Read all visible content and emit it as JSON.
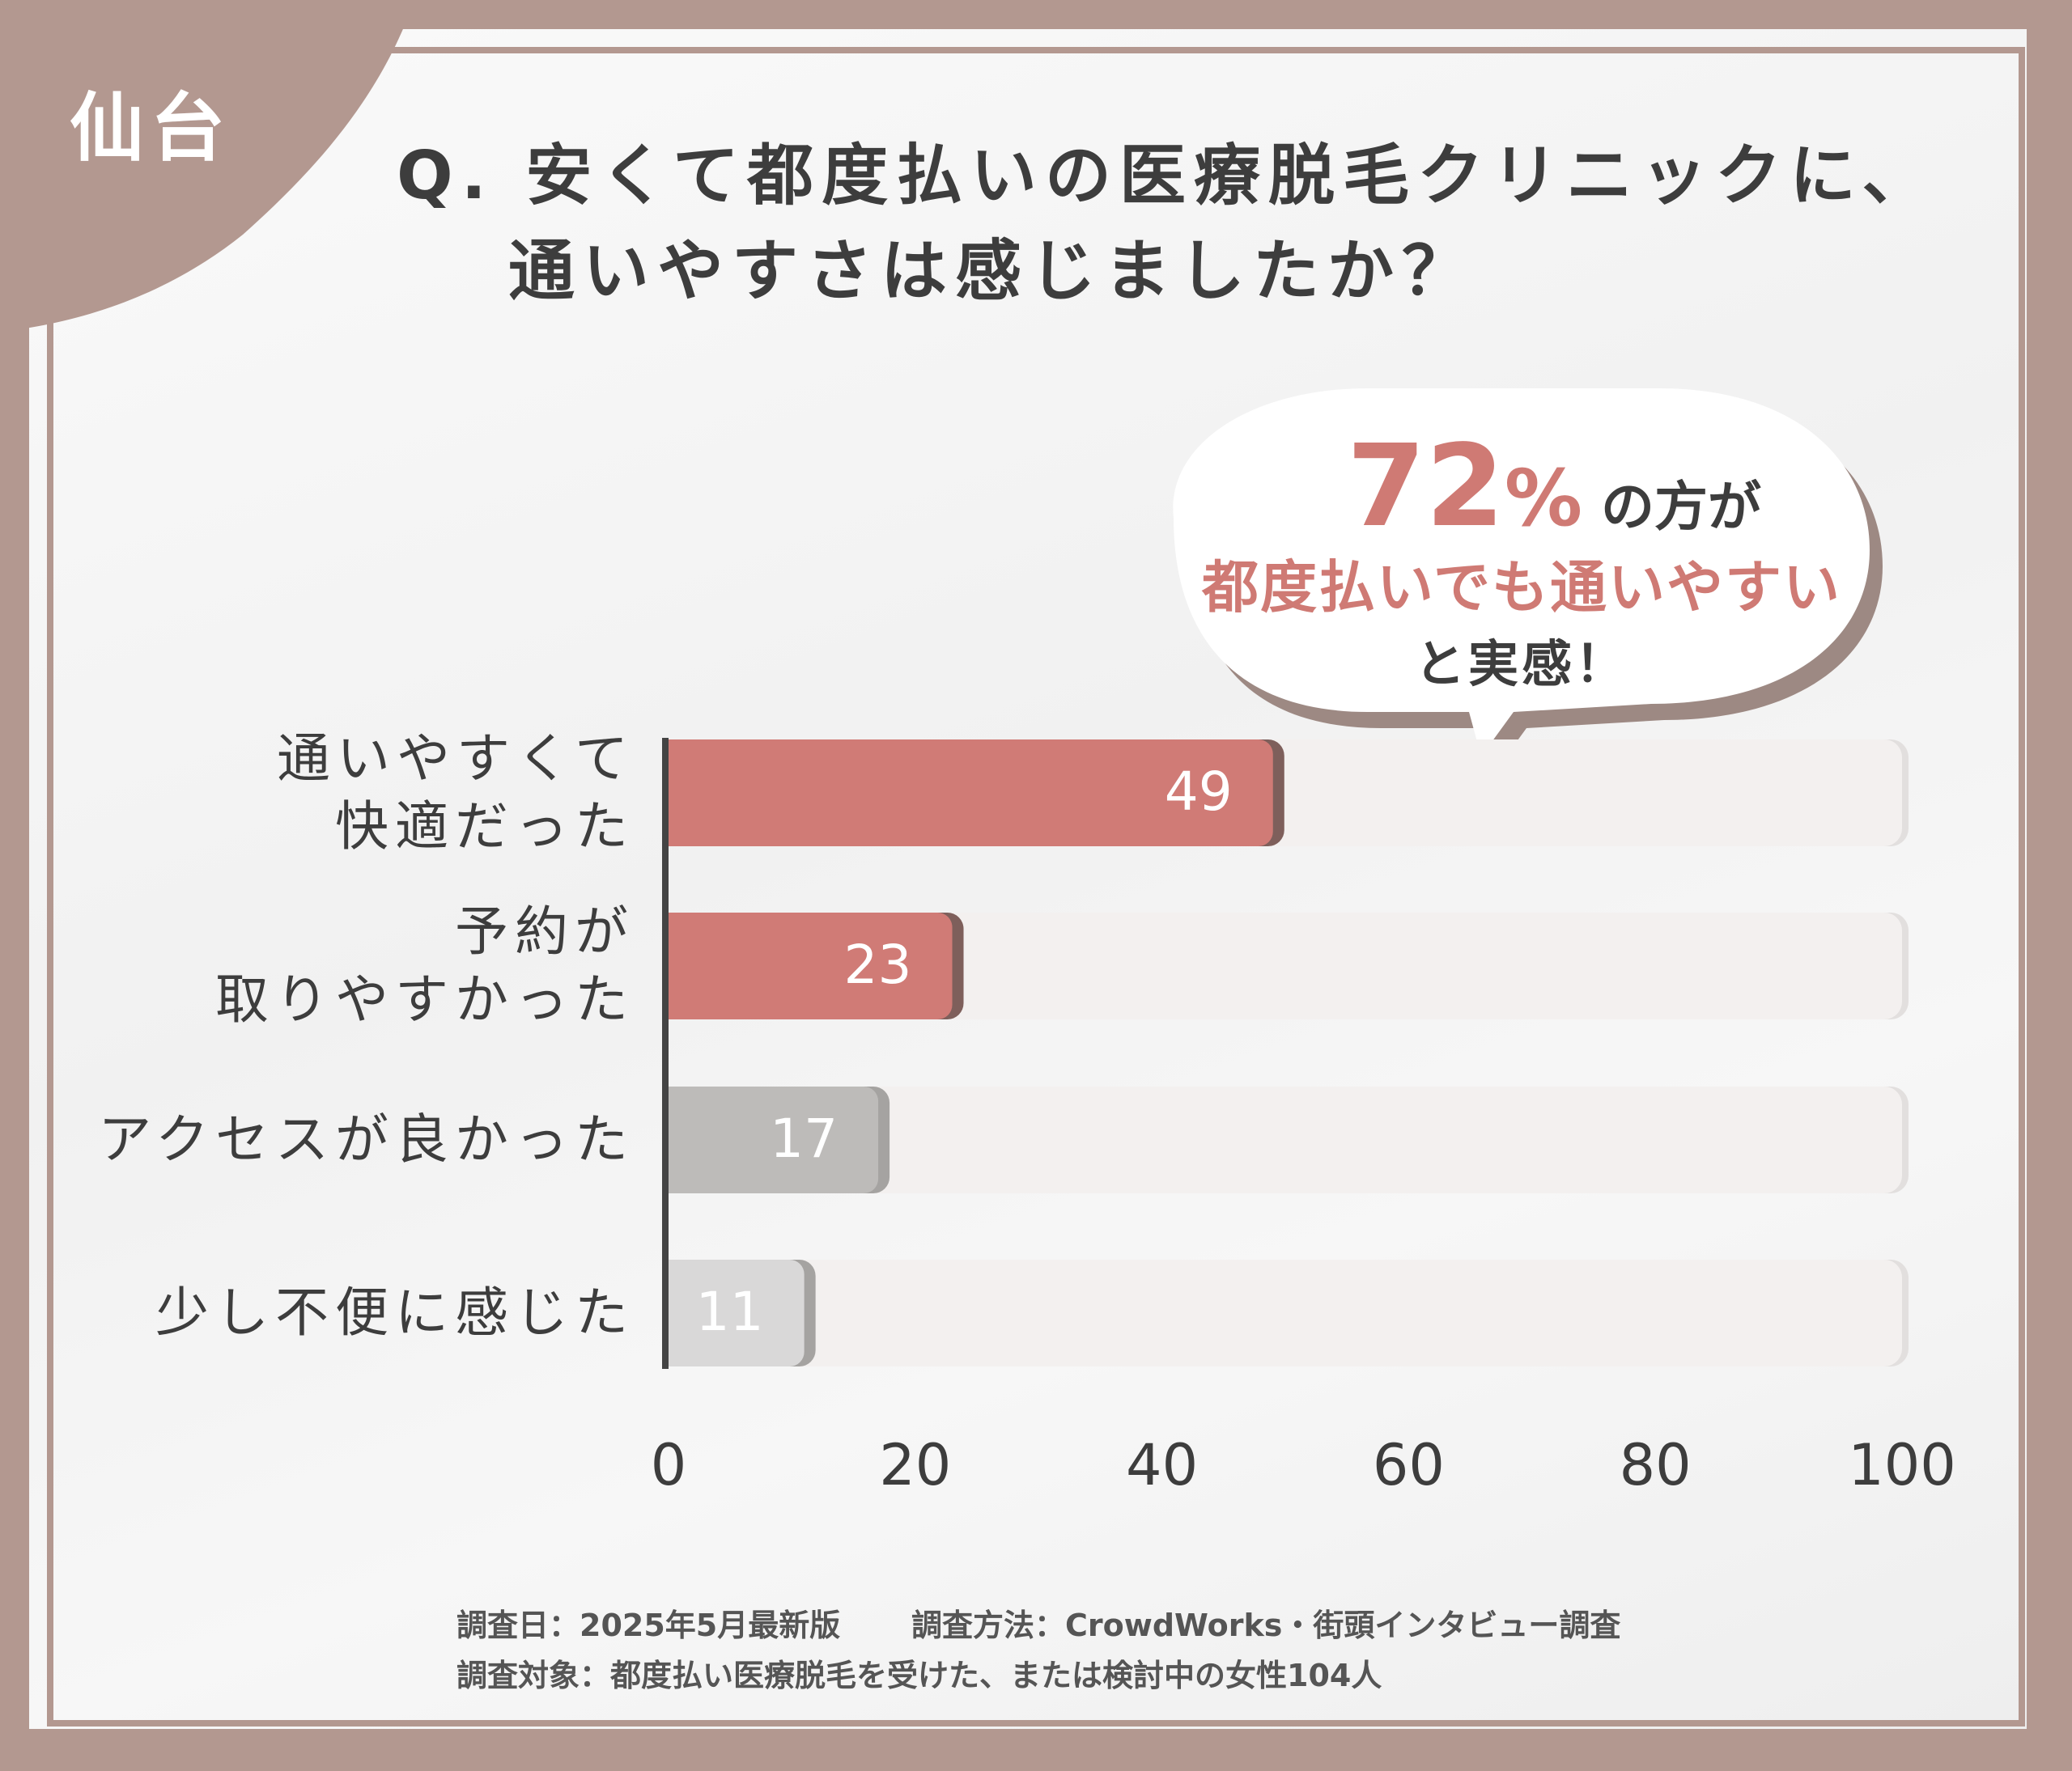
{
  "city": "仙台",
  "title_line1": "Q. 安くて都度払いの医療脱毛クリニックに、",
  "title_line2": "通いやすさは感じましたか？",
  "callout": {
    "percent": "72",
    "percent_sign": "%",
    "suffix": "の方が",
    "line2": "都度払いでも通いやすい",
    "line3": "と実感！"
  },
  "chart_data": {
    "type": "bar",
    "orientation": "horizontal",
    "categories": [
      "通いやすくて\n快適だった",
      "予約が\n取りやすかった",
      "アクセスが良かった",
      "少し不便に感じた"
    ],
    "values": [
      49,
      23,
      17,
      11
    ],
    "xlim": [
      0,
      100
    ],
    "xticks": [
      "0",
      "20",
      "40",
      "60",
      "80",
      "100"
    ],
    "colors": [
      "#d07b76",
      "#d07b76",
      "#bdbbb9",
      "#d9d8d8"
    ],
    "track_color": "#f3f0ef"
  },
  "footer": {
    "line1_left": "調査日：2025年5月最新版",
    "line1_right": "調査方法：CrowdWorks・街頭インタビュー調査",
    "line2": "調査対象：都度払い医療脱毛を受けた、または検討中の女性104人"
  }
}
